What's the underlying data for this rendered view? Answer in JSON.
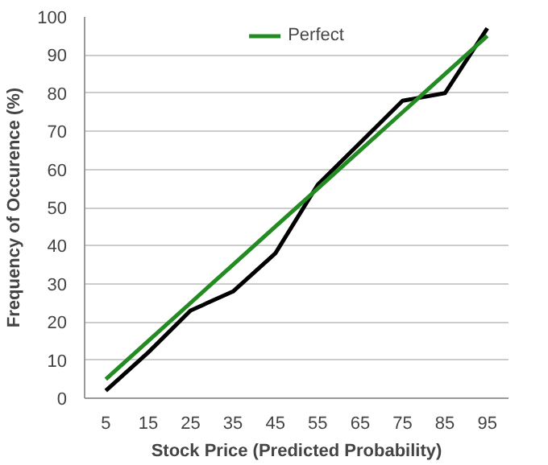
{
  "chart_data": {
    "type": "line",
    "xlabel": "Stock Price (Predicted Probability)",
    "ylabel": "Frequency of Occurence (%)",
    "categories": [
      "5",
      "15",
      "25",
      "35",
      "45",
      "55",
      "65",
      "75",
      "85",
      "95"
    ],
    "series": [
      {
        "color": "#000000",
        "values": [
          2,
          12,
          23,
          28,
          38,
          56,
          67,
          78,
          80,
          97
        ]
      },
      {
        "name": "Perfect",
        "color": "#228b22",
        "values": [
          5,
          15,
          25,
          35,
          45,
          55,
          65,
          75,
          85,
          95
        ]
      }
    ],
    "ylim": [
      0,
      100
    ],
    "yticks": [
      0,
      10,
      20,
      30,
      40,
      50,
      60,
      70,
      80,
      90,
      100
    ],
    "grid": "y",
    "legend": "top",
    "marker": "none",
    "line_style": "solid"
  }
}
